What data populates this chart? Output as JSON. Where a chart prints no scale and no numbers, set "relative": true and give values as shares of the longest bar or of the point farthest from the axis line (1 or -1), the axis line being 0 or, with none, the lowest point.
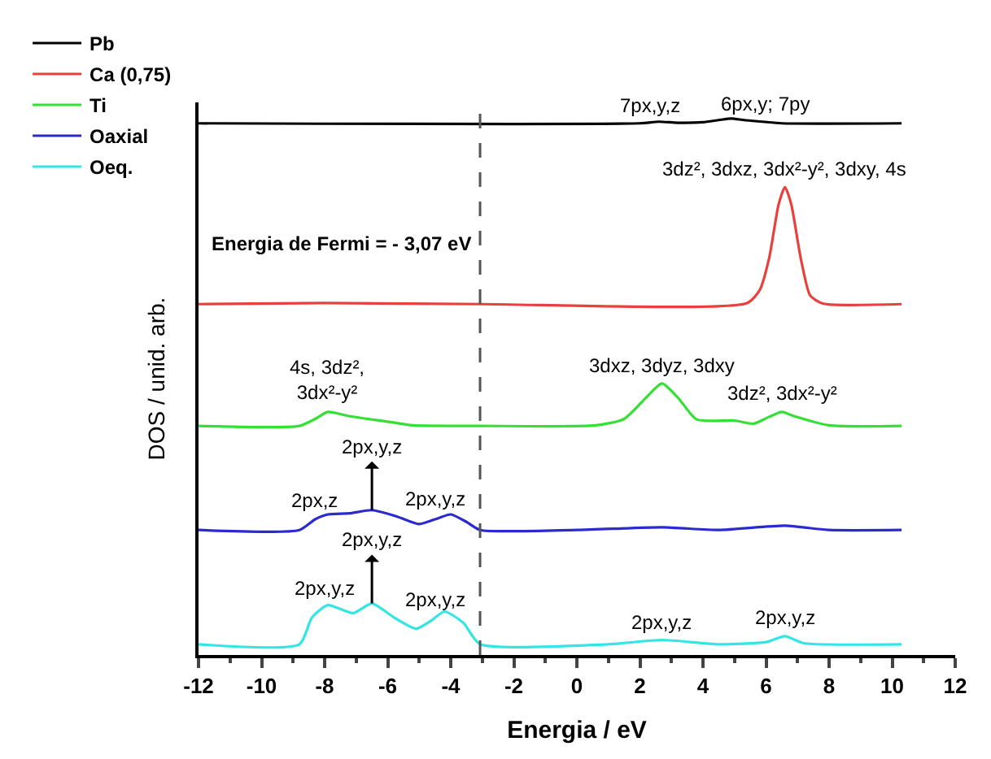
{
  "chart_data": {
    "type": "line",
    "relative": true,
    "xlabel": "Energia / eV",
    "ylabel": "DOS / unid. arb.",
    "xlim": [
      -12,
      12
    ],
    "xticks": [
      -12,
      -10,
      -8,
      -6,
      -4,
      -2,
      0,
      2,
      4,
      6,
      8,
      10,
      12
    ],
    "tick_labels": "x",
    "legend": "top left",
    "marker": "none",
    "line_style": "solid",
    "series": [
      {
        "name": "Pb",
        "color": "#000000",
        "x": [
          -12,
          2,
          2.6,
          3.2,
          4,
          4.5,
          4.9,
          5.3,
          5.9,
          6.5,
          10.3
        ],
        "values": [
          0.991,
          0.991,
          0.994,
          0.992,
          0.993,
          0.997,
          1.0,
          0.997,
          0.994,
          0.991,
          0.991
        ]
      },
      {
        "name": "Ca (0,75)",
        "color": "#e8403c",
        "x": [
          -12,
          -8,
          -3,
          5.4,
          5.8,
          6.1,
          6.4,
          6.6,
          6.8,
          7.1,
          7.4,
          7.8,
          10.3
        ],
        "values": [
          0.654,
          0.656,
          0.654,
          0.656,
          0.68,
          0.74,
          0.84,
          0.872,
          0.84,
          0.74,
          0.67,
          0.655,
          0.654
        ]
      },
      {
        "name": "Ti",
        "color": "#33e033",
        "x": [
          -12,
          -8.8,
          -8.3,
          -7.9,
          -7.2,
          -6,
          -5.2,
          -3,
          0.6,
          1.5,
          2.2,
          2.7,
          3.2,
          3.8,
          5,
          5.6,
          6.1,
          6.5,
          6.9,
          8,
          10.3
        ],
        "values": [
          0.427,
          0.427,
          0.44,
          0.453,
          0.445,
          0.435,
          0.428,
          0.427,
          0.428,
          0.44,
          0.48,
          0.506,
          0.48,
          0.439,
          0.437,
          0.431,
          0.444,
          0.453,
          0.445,
          0.428,
          0.427
        ]
      },
      {
        "name": "Oaxial",
        "color": "#2a2ad0",
        "x": [
          -12,
          -8.8,
          -8.3,
          -7.9,
          -7.2,
          -6.5,
          -5.7,
          -5.0,
          -4.4,
          -4.0,
          -3.5,
          -3.07,
          0,
          2.7,
          4.5,
          6.6,
          8,
          10.3
        ],
        "values": [
          0.233,
          0.233,
          0.253,
          0.262,
          0.264,
          0.27,
          0.258,
          0.244,
          0.255,
          0.262,
          0.248,
          0.233,
          0.233,
          0.238,
          0.233,
          0.241,
          0.233,
          0.233
        ]
      },
      {
        "name": "Oeq.",
        "color": "#33e5e5",
        "x": [
          -12,
          -8.8,
          -8.4,
          -7.9,
          -7.1,
          -6.5,
          -5.8,
          -5.1,
          -4.6,
          -4.2,
          -3.6,
          -3.07,
          1,
          2.7,
          4.5,
          6.0,
          6.6,
          7.2,
          10.3
        ],
        "values": [
          0.02,
          0.02,
          0.07,
          0.093,
          0.078,
          0.096,
          0.07,
          0.049,
          0.065,
          0.081,
          0.06,
          0.02,
          0.02,
          0.028,
          0.02,
          0.024,
          0.035,
          0.022,
          0.02
        ]
      }
    ],
    "ref_lines": [
      {
        "axis": "x",
        "value": -3.07,
        "label": "Energia de Fermi = - 3,07 eV",
        "color": "#555555",
        "line_style": "dashed"
      }
    ],
    "annotations": [
      {
        "text": "7px,y,z",
        "x": 2.3,
        "y": 0.992
      },
      {
        "text": "6px,y; 7py",
        "x": 6.0,
        "y": 0.994
      },
      {
        "text": "3dz², 3dxz, 3dx²-y², 3dxy, 4s",
        "x": 6.6,
        "y": 0.872
      },
      {
        "text": "4s, 3dz²,\n3dx²-y²",
        "x": -7.9,
        "y": 0.453
      },
      {
        "text": "3dxz, 3dyz, 3dxy",
        "x": 2.7,
        "y": 0.506
      },
      {
        "text": "3dz², 3dx²-y²",
        "x": 6.5,
        "y": 0.453
      },
      {
        "text": "2px,z",
        "x": -8.3,
        "y": 0.253
      },
      {
        "text": "2px,y,z",
        "x": -4.5,
        "y": 0.257
      },
      {
        "text": "2px,y,z",
        "x": -6.5,
        "y": 0.27
      },
      {
        "text": "2px,y,z",
        "x": -8.0,
        "y": 0.09
      },
      {
        "text": "2px,y,z",
        "x": -4.5,
        "y": 0.07
      },
      {
        "text": "2px,y,z",
        "x": -6.5,
        "y": 0.096
      },
      {
        "text": "2px,y,z",
        "x": 2.7,
        "y": 0.028
      },
      {
        "text": "2px,y,z",
        "x": 6.6,
        "y": 0.035
      }
    ]
  }
}
